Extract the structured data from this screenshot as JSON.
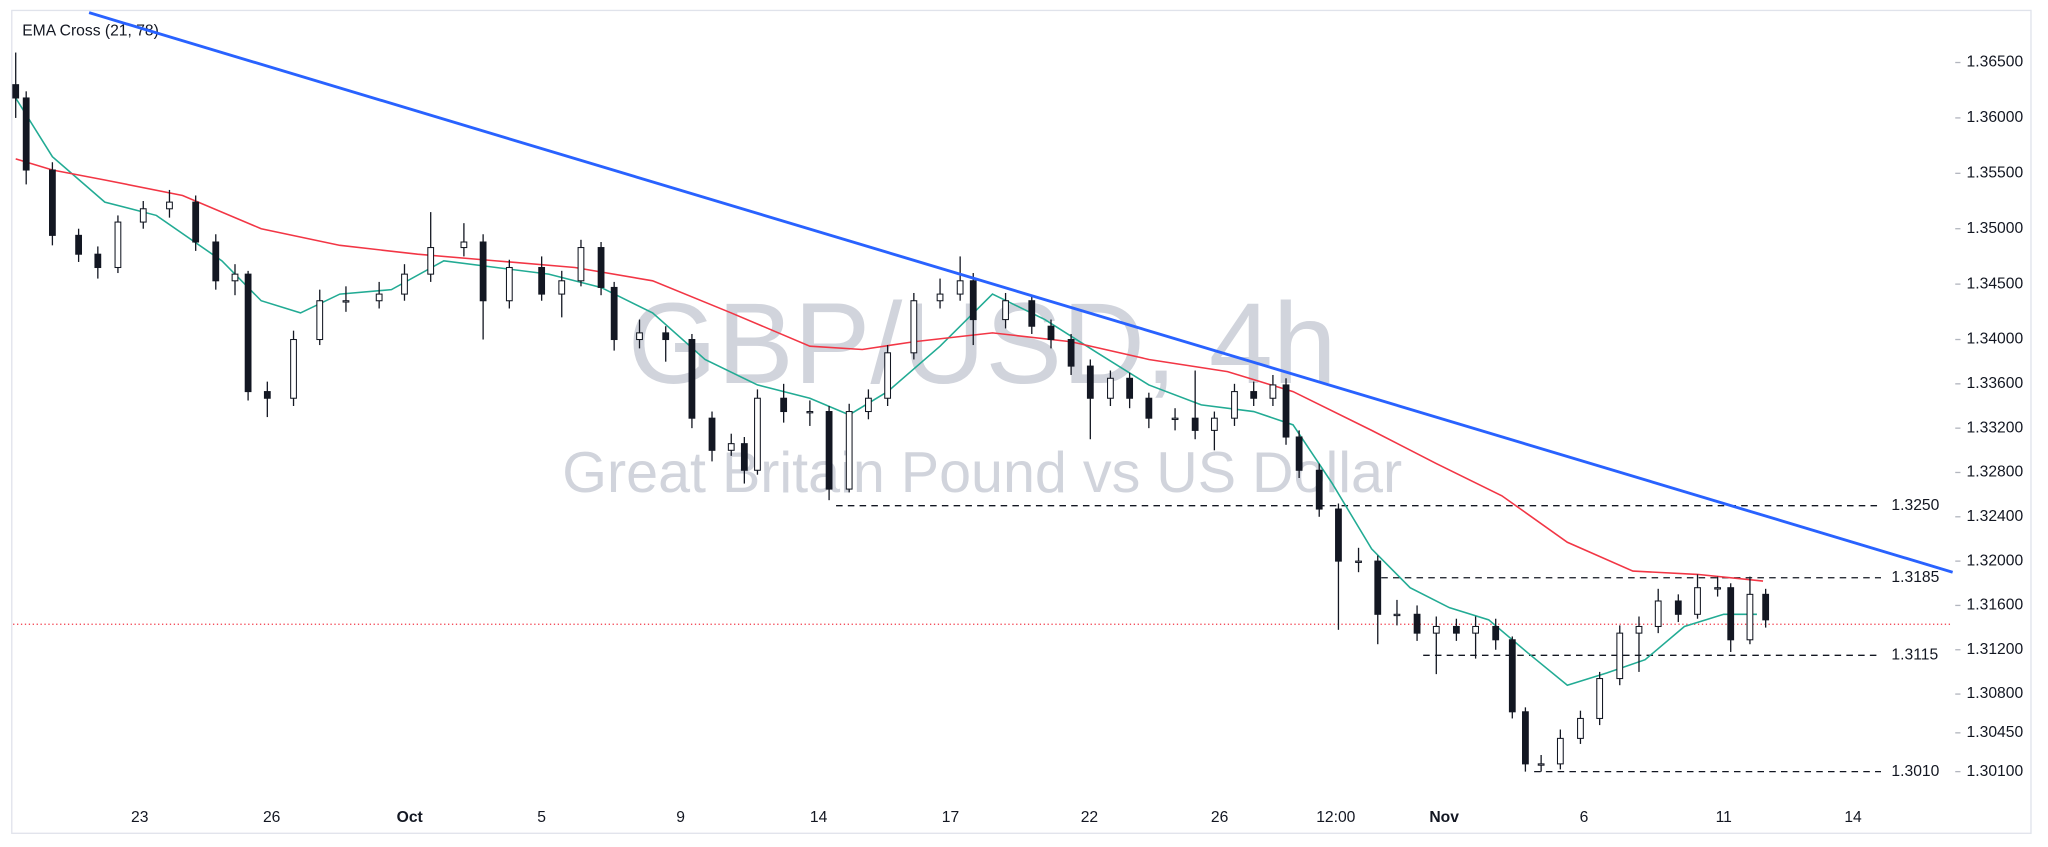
{
  "chart_data": {
    "type": "candlestick",
    "title": "GBP/USD, 4h",
    "subtitle": "Great Britain Pound vs US Dollar",
    "indicator_label": "EMA Cross (21, 78)",
    "colors": {
      "up": "#ffffff",
      "down": "#131722",
      "edge": "#131722"
    },
    "xlim": [
      0,
      222
    ],
    "ylim": [
      1.2985,
      1.3697
    ],
    "xticks": [
      {
        "value": 14.5,
        "label": "23"
      },
      {
        "value": 29.6,
        "label": "26"
      },
      {
        "value": 45.4,
        "label": "Oct"
      },
      {
        "value": 60.5,
        "label": "5"
      },
      {
        "value": 76.4,
        "label": "9"
      },
      {
        "value": 92.2,
        "label": "14"
      },
      {
        "value": 107.3,
        "label": "17"
      },
      {
        "value": 123.2,
        "label": "22"
      },
      {
        "value": 138.1,
        "label": "26"
      },
      {
        "value": 151.4,
        "label": "12:00"
      },
      {
        "value": 163.8,
        "label": "Nov"
      },
      {
        "value": 179.8,
        "label": "6"
      },
      {
        "value": 195.8,
        "label": "11"
      },
      {
        "value": 210.6,
        "label": "14"
      }
    ],
    "yticks": [
      {
        "value": 1.365,
        "label": "1.36500"
      },
      {
        "value": 1.36,
        "label": "1.36000"
      },
      {
        "value": 1.355,
        "label": "1.35500"
      },
      {
        "value": 1.35,
        "label": "1.35000"
      },
      {
        "value": 1.345,
        "label": "1.34500"
      },
      {
        "value": 1.34,
        "label": "1.34000"
      },
      {
        "value": 1.336,
        "label": "1.33600"
      },
      {
        "value": 1.332,
        "label": "1.33200"
      },
      {
        "value": 1.328,
        "label": "1.32800"
      },
      {
        "value": 1.324,
        "label": "1.32400"
      },
      {
        "value": 1.32,
        "label": "1.32000"
      },
      {
        "value": 1.316,
        "label": "1.31600"
      },
      {
        "value": 1.312,
        "label": "1.31200"
      },
      {
        "value": 1.308,
        "label": "1.30800"
      },
      {
        "value": 1.3045,
        "label": "1.30450"
      },
      {
        "value": 1.301,
        "label": "1.30100"
      }
    ],
    "candles": {
      "x": [
        0.3,
        1.5,
        4.5,
        7.5,
        9.7,
        12.0,
        14.9,
        17.9,
        20.9,
        23.2,
        25.4,
        26.9,
        29.1,
        32.1,
        35.1,
        38.1,
        41.9,
        44.8,
        47.8,
        51.6,
        53.8,
        56.8,
        60.5,
        62.8,
        65.0,
        67.3,
        68.8,
        71.7,
        74.7,
        77.7,
        80.0,
        82.2,
        83.7,
        85.2,
        88.2,
        91.2,
        93.4,
        95.7,
        97.9,
        100.1,
        103.1,
        106.1,
        108.4,
        109.9,
        113.6,
        116.6,
        118.8,
        121.1,
        123.3,
        125.6,
        127.8,
        130.0,
        133.0,
        135.3,
        137.5,
        139.8,
        142.0,
        144.2,
        145.7,
        147.2,
        149.5,
        151.7,
        154.0,
        156.2,
        158.4,
        160.7,
        162.9,
        165.2,
        167.4,
        169.7,
        171.6,
        173.1,
        174.9,
        177.1,
        179.4,
        181.6,
        183.9,
        186.1,
        188.3,
        190.6,
        192.8,
        195.1,
        196.6,
        198.8,
        200.6
      ],
      "open": [
        1.363,
        1.3618,
        1.3553,
        1.3494,
        1.3477,
        1.3465,
        1.3506,
        1.3518,
        1.3524,
        1.3488,
        1.3453,
        1.3459,
        1.3353,
        1.3347,
        1.34,
        1.3435,
        1.3435,
        1.3441,
        1.3459,
        1.3483,
        1.3488,
        1.3435,
        1.3465,
        1.3441,
        1.3453,
        1.3483,
        1.3447,
        1.34,
        1.3406,
        1.34,
        1.3329,
        1.33,
        1.3306,
        1.3282,
        1.3347,
        1.3335,
        1.3335,
        1.3265,
        1.3335,
        1.3347,
        1.3388,
        1.3435,
        1.3441,
        1.3453,
        1.3418,
        1.3435,
        1.3412,
        1.34,
        1.3376,
        1.3347,
        1.3365,
        1.3347,
        1.3329,
        1.3329,
        1.3318,
        1.3329,
        1.3353,
        1.3347,
        1.3359,
        1.3312,
        1.3282,
        1.3247,
        1.32,
        1.32,
        1.3152,
        1.3152,
        1.3135,
        1.3141,
        1.3135,
        1.3141,
        1.3129,
        1.3064,
        1.3017,
        1.3017,
        1.304,
        1.3058,
        1.3094,
        1.3135,
        1.3141,
        1.3164,
        1.3152,
        1.3176,
        1.3176,
        1.3129,
        1.317
      ],
      "high": [
        1.3659,
        1.3624,
        1.356,
        1.35,
        1.3484,
        1.3512,
        1.3525,
        1.3535,
        1.353,
        1.3495,
        1.3468,
        1.3462,
        1.3362,
        1.3408,
        1.3445,
        1.3448,
        1.3452,
        1.3468,
        1.3515,
        1.3505,
        1.3495,
        1.3472,
        1.3475,
        1.3462,
        1.349,
        1.3488,
        1.3452,
        1.3418,
        1.3412,
        1.3405,
        1.3335,
        1.3315,
        1.3312,
        1.3355,
        1.336,
        1.3345,
        1.334,
        1.3342,
        1.3355,
        1.3395,
        1.3442,
        1.3455,
        1.3475,
        1.346,
        1.3442,
        1.344,
        1.3418,
        1.3405,
        1.3382,
        1.3372,
        1.337,
        1.3352,
        1.3338,
        1.3372,
        1.3335,
        1.336,
        1.3362,
        1.3368,
        1.3365,
        1.3318,
        1.3288,
        1.3252,
        1.3212,
        1.3205,
        1.3165,
        1.316,
        1.315,
        1.3148,
        1.315,
        1.3148,
        1.3132,
        1.3068,
        1.3025,
        1.3048,
        1.3065,
        1.31,
        1.3142,
        1.315,
        1.3175,
        1.317,
        1.3188,
        1.3186,
        1.318,
        1.3186,
        1.3175
      ],
      "low": [
        1.36,
        1.354,
        1.3485,
        1.347,
        1.3455,
        1.346,
        1.35,
        1.351,
        1.348,
        1.3445,
        1.344,
        1.3345,
        1.333,
        1.334,
        1.3395,
        1.3425,
        1.3428,
        1.3435,
        1.3452,
        1.3475,
        1.34,
        1.3428,
        1.3435,
        1.342,
        1.3448,
        1.344,
        1.339,
        1.3392,
        1.338,
        1.332,
        1.329,
        1.3295,
        1.327,
        1.3278,
        1.3325,
        1.3322,
        1.3255,
        1.3262,
        1.3328,
        1.334,
        1.3382,
        1.3428,
        1.3435,
        1.3395,
        1.341,
        1.3405,
        1.3392,
        1.3368,
        1.331,
        1.334,
        1.3338,
        1.332,
        1.3318,
        1.331,
        1.33,
        1.3322,
        1.334,
        1.334,
        1.3305,
        1.3275,
        1.324,
        1.3138,
        1.319,
        1.3125,
        1.3142,
        1.3128,
        1.3098,
        1.3128,
        1.3112,
        1.312,
        1.3058,
        1.301,
        1.301,
        1.3012,
        1.3035,
        1.3052,
        1.3088,
        1.31,
        1.3135,
        1.3145,
        1.3148,
        1.3168,
        1.3118,
        1.3125,
        1.314
      ],
      "close": [
        1.3618,
        1.3553,
        1.3494,
        1.3477,
        1.3465,
        1.3506,
        1.3518,
        1.3524,
        1.3488,
        1.3453,
        1.3459,
        1.3353,
        1.3347,
        1.34,
        1.3435,
        1.3435,
        1.3441,
        1.3459,
        1.3483,
        1.3488,
        1.3435,
        1.3465,
        1.3441,
        1.3453,
        1.3483,
        1.3447,
        1.34,
        1.3406,
        1.34,
        1.3329,
        1.33,
        1.3306,
        1.3282,
        1.3347,
        1.3335,
        1.3335,
        1.3265,
        1.3335,
        1.3347,
        1.3388,
        1.3435,
        1.3441,
        1.3453,
        1.3418,
        1.3435,
        1.3412,
        1.34,
        1.3376,
        1.3347,
        1.3365,
        1.3347,
        1.3329,
        1.3329,
        1.3318,
        1.3329,
        1.3353,
        1.3347,
        1.3359,
        1.3312,
        1.3282,
        1.3247,
        1.32,
        1.32,
        1.3152,
        1.3152,
        1.3135,
        1.3141,
        1.3135,
        1.3141,
        1.3129,
        1.3064,
        1.3017,
        1.3017,
        1.304,
        1.3058,
        1.3094,
        1.3135,
        1.3141,
        1.3164,
        1.3152,
        1.3176,
        1.3176,
        1.3129,
        1.317,
        1.3147
      ]
    },
    "series": [
      {
        "color": "#22ab94",
        "x": [
          0.3,
          4.5,
          10.5,
          16.4,
          23.9,
          28.4,
          32.9,
          37.4,
          43.3,
          49.3,
          55.3,
          61.3,
          67.3,
          73.2,
          79.2,
          85.2,
          91.2,
          95.7,
          100.1,
          106.1,
          112.1,
          118.1,
          124.1,
          130.0,
          136.0,
          142.0,
          146.5,
          151.0,
          155.5,
          159.9,
          164.4,
          168.9,
          173.4,
          177.9,
          182.4,
          186.8,
          191.3,
          195.8,
          199.6
        ],
        "values": [
          1.3618,
          1.3565,
          1.3524,
          1.3512,
          1.3471,
          1.3435,
          1.3424,
          1.3441,
          1.3445,
          1.3471,
          1.3465,
          1.3459,
          1.3447,
          1.3424,
          1.3382,
          1.3359,
          1.3347,
          1.3332,
          1.3353,
          1.3394,
          1.3441,
          1.3418,
          1.3388,
          1.3359,
          1.3341,
          1.3335,
          1.3323,
          1.327,
          1.3211,
          1.3176,
          1.3158,
          1.3147,
          1.3117,
          1.3088,
          1.3099,
          1.3111,
          1.3141,
          1.3152,
          1.3152
        ]
      },
      {
        "color": "#f23645",
        "x": [
          0.3,
          4.5,
          10.5,
          19.4,
          28.4,
          37.4,
          46.3,
          55.3,
          64.3,
          73.2,
          82.2,
          91.2,
          97.2,
          103.1,
          112.1,
          121.1,
          130.0,
          139.0,
          146.5,
          155.5,
          162.9,
          170.4,
          177.9,
          185.4,
          192.8,
          200.3
        ],
        "values": [
          1.3563,
          1.3553,
          1.3544,
          1.353,
          1.35,
          1.3485,
          1.3477,
          1.3471,
          1.3465,
          1.3453,
          1.3424,
          1.3394,
          1.3391,
          1.3398,
          1.3406,
          1.3398,
          1.3382,
          1.3371,
          1.3353,
          1.3318,
          1.3288,
          1.3259,
          1.3217,
          1.3191,
          1.3188,
          1.3182
        ]
      }
    ],
    "trendline": {
      "color": "#2962ff",
      "x": [
        8.7,
        222
      ],
      "values": [
        1.3695,
        1.319
      ]
    },
    "levels": [
      {
        "value": 1.325,
        "label": "1.3250",
        "x": [
          94.2,
          213.8
        ]
      },
      {
        "value": 1.3185,
        "label": "1.3185",
        "x": [
          156.6,
          213.8
        ]
      },
      {
        "value": 1.3115,
        "label": "1.3115",
        "x": [
          161.4,
          213.8
        ]
      },
      {
        "value": 1.301,
        "label": "1.3010",
        "x": [
          174.1,
          213.8
        ]
      }
    ],
    "current_price": {
      "value": 1.3143,
      "color": "#f23645"
    }
  }
}
